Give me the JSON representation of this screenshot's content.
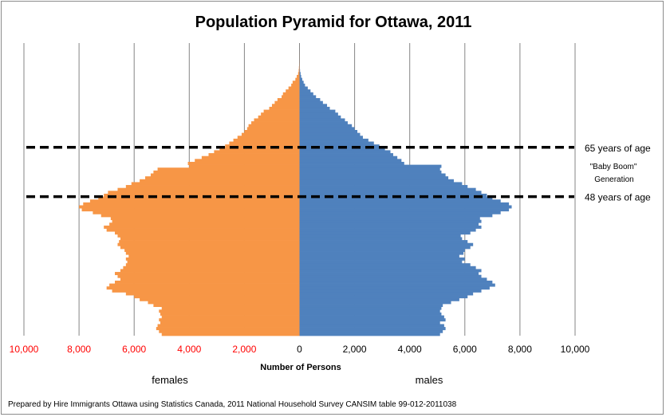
{
  "chart_data": {
    "type": "bar",
    "orientation": "horizontal-population-pyramid",
    "title": "Population Pyramid for Ottawa, 2011",
    "xlabel": "Number of Persons",
    "left_label": "females",
    "right_label": "males",
    "xlim": [
      -10000,
      10000
    ],
    "x_tick_labels": [
      "10,000",
      "8,000",
      "6,000",
      "4,000",
      "2,000",
      "0",
      "2,000",
      "4,000",
      "6,000",
      "8,000",
      "10,000"
    ],
    "x_tick_values": [
      -10000,
      -8000,
      -6000,
      -4000,
      -2000,
      0,
      2000,
      4000,
      6000,
      8000,
      10000
    ],
    "negative_tick_color": "#ff0000",
    "positive_tick_color": "#000000",
    "grid": "vertical",
    "age_range": [
      0,
      100
    ],
    "series": [
      {
        "name": "females",
        "color": "#f79646",
        "values": [
          5000,
          5100,
          5200,
          5150,
          5050,
          5100,
          5000,
          5050,
          5100,
          5000,
          5300,
          5500,
          5800,
          6000,
          6300,
          6800,
          7000,
          6900,
          6700,
          6500,
          6600,
          6700,
          6500,
          6400,
          6300,
          6250,
          6300,
          6200,
          6300,
          6350,
          6500,
          6600,
          6550,
          6500,
          6600,
          6700,
          7000,
          7100,
          6900,
          6800,
          6850,
          7200,
          7500,
          7900,
          8000,
          7850,
          7600,
          7300,
          7100,
          6950,
          6600,
          6300,
          6100,
          5800,
          5600,
          5400,
          5300,
          5150,
          4000,
          4050,
          3800,
          3550,
          3300,
          3100,
          2900,
          2700,
          2550,
          2400,
          2250,
          2100,
          2000,
          1900,
          1850,
          1750,
          1650,
          1500,
          1400,
          1300,
          1100,
          1000,
          900,
          800,
          650,
          600,
          500,
          400,
          300,
          250,
          150,
          100,
          50,
          30,
          20,
          10,
          5,
          3,
          2,
          1,
          0,
          0,
          0
        ],
        "values_sign": "positive counts plotted to the left"
      },
      {
        "name": "males",
        "color": "#4f81bd",
        "values": [
          5100,
          5200,
          5300,
          5250,
          5100,
          5300,
          5250,
          5150,
          5100,
          5150,
          5200,
          5500,
          5800,
          6100,
          6300,
          6600,
          6900,
          7100,
          7000,
          6800,
          6600,
          6500,
          6600,
          6400,
          6200,
          5900,
          6000,
          5800,
          5950,
          6000,
          6200,
          6300,
          6100,
          5900,
          5850,
          6200,
          6400,
          6600,
          6500,
          6600,
          6550,
          7000,
          7300,
          7600,
          7700,
          7600,
          7300,
          7000,
          6800,
          6600,
          6400,
          6100,
          5900,
          5600,
          5400,
          5300,
          5150,
          5100,
          5150,
          3800,
          3700,
          3550,
          3400,
          3300,
          3100,
          2900,
          2700,
          2500,
          2300,
          2200,
          2100,
          2000,
          1900,
          1750,
          1650,
          1500,
          1400,
          1300,
          1100,
          1000,
          850,
          750,
          600,
          500,
          400,
          300,
          200,
          150,
          100,
          60,
          40,
          20,
          10,
          5,
          3,
          2,
          1,
          0,
          0,
          0,
          0
        ]
      }
    ],
    "reference_lines": [
      {
        "label": "65 years of age",
        "age": 65
      },
      {
        "label": "48 years of age",
        "age": 48
      }
    ],
    "annotations": {
      "baby_boom_line1": "\"Baby Boom\"",
      "baby_boom_line2": "Generation"
    }
  },
  "footer": "Prepared by Hire Immigrants Ottawa using Statistics Canada, 2011 National Household Survey CANSIM table 99-012-2011038"
}
